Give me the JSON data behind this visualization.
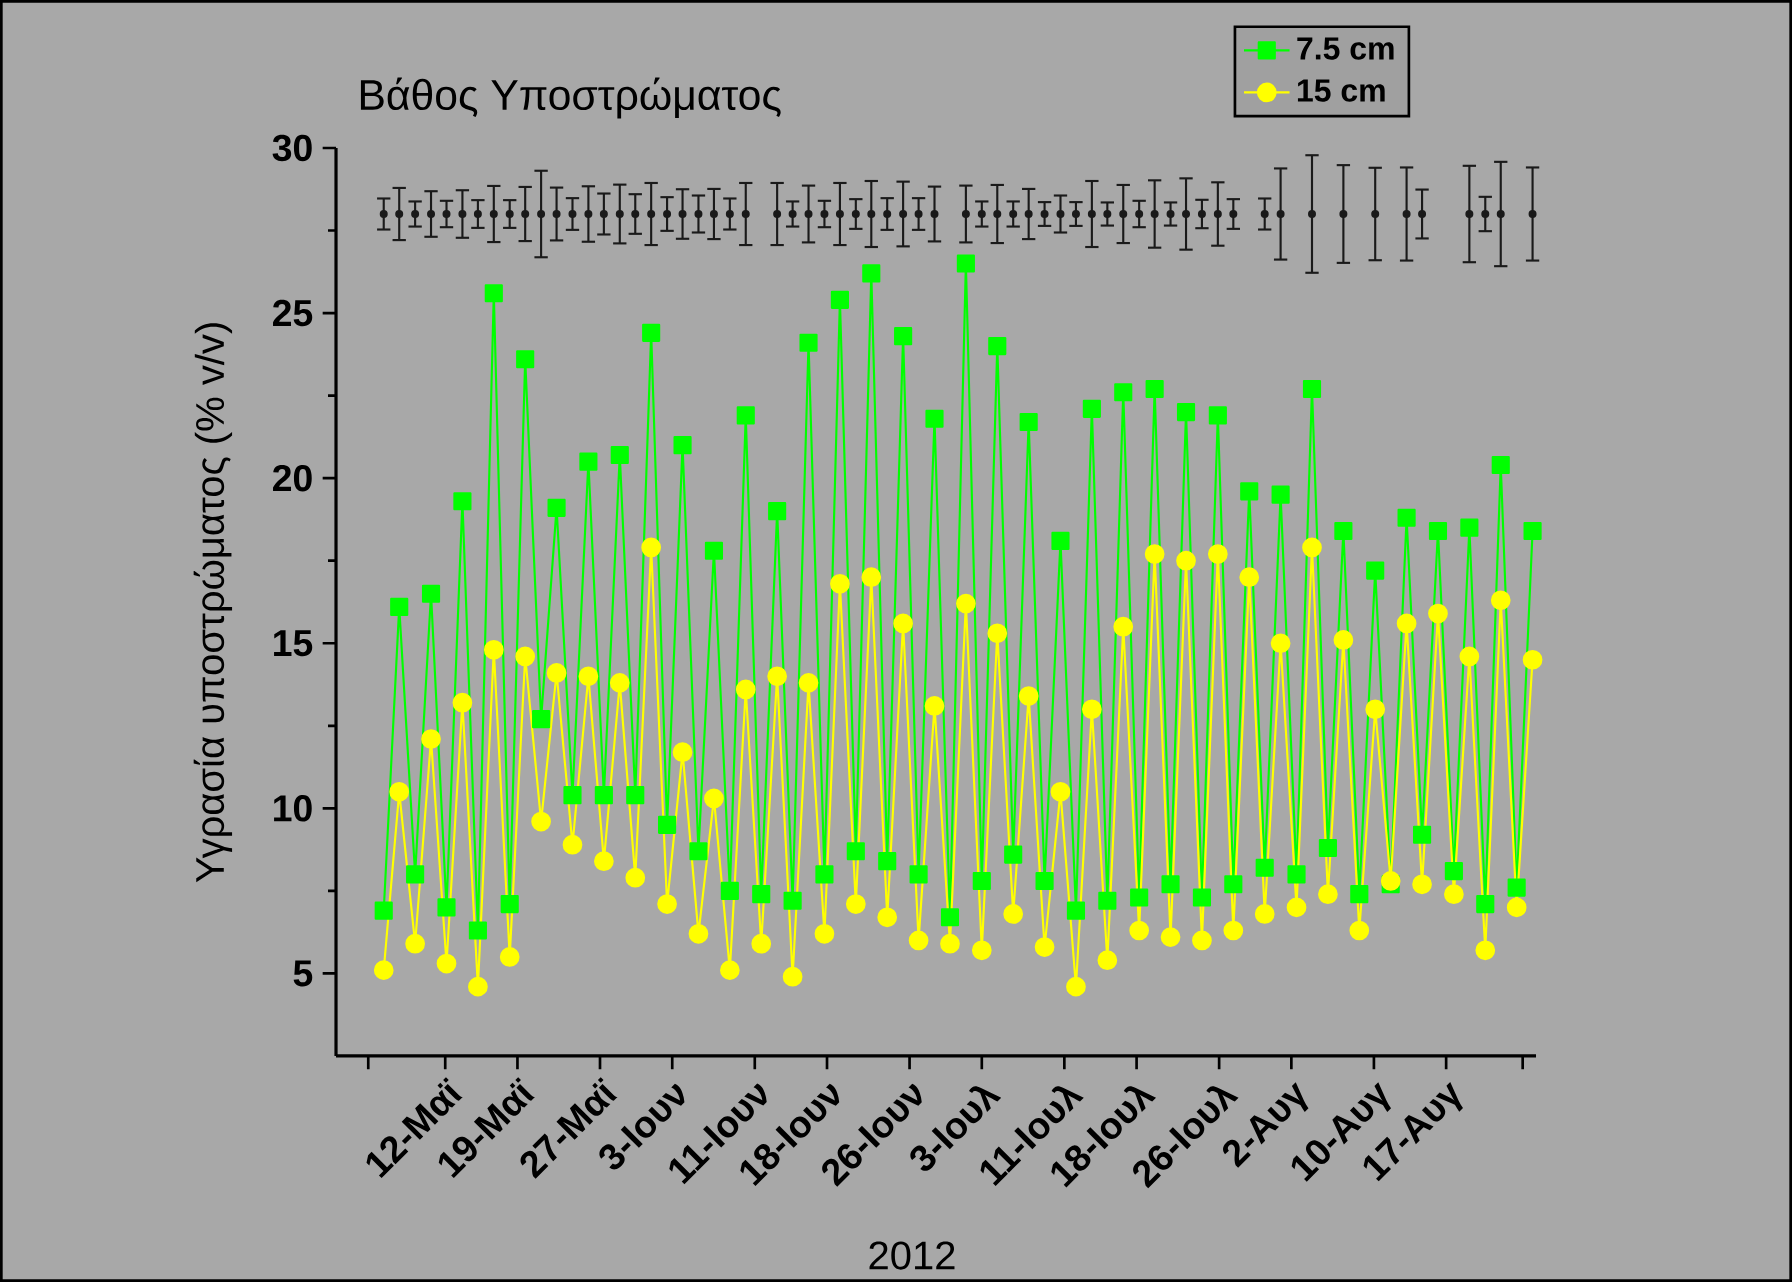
{
  "chart_data": {
    "type": "line",
    "title": "Βάθος Υποστρώματος",
    "xlabel": "2012",
    "ylabel": "Υγρασία υποστρώματος (% v/v)",
    "x": [
      "2012-05-06T01:00",
      "2012-05-07T13:00",
      "2012-05-09T02:00",
      "2012-05-10T15:00",
      "2012-05-12T03:00",
      "2012-05-13T16:00",
      "2012-05-15T04:00",
      "2012-05-16T17:00",
      "2012-05-18T06:00",
      "2012-05-19T18:00",
      "2012-05-21T07:00",
      "2012-05-22T19:00",
      "2012-05-24T08:00",
      "2012-05-25T21:00",
      "2012-05-27T09:00",
      "2012-05-28T22:00",
      "2012-05-30T10:00",
      "2012-05-31T23:00",
      "2012-06-02T12:00",
      "2012-06-04T00:00",
      "2012-06-05T13:00",
      "2012-06-07T01:00",
      "2012-06-08T14:00",
      "2012-06-10T03:00",
      "2012-06-11T15:00",
      "2012-06-13T04:00",
      "2012-06-14T16:00",
      "2012-06-16T05:00",
      "2012-06-17T18:00",
      "2012-06-19T06:00",
      "2012-06-20T19:00",
      "2012-06-22T07:00",
      "2012-06-23T20:00",
      "2012-06-25T09:00",
      "2012-06-26T21:00",
      "2012-06-28T10:00",
      "2012-06-29T22:00",
      "2012-07-01T11:00",
      "2012-07-03T00:00",
      "2012-07-04T12:00",
      "2012-07-06T01:00",
      "2012-07-07T13:00",
      "2012-07-09T02:00",
      "2012-07-10T15:00",
      "2012-07-12T03:00",
      "2012-07-13T16:00",
      "2012-07-15T04:00",
      "2012-07-16T17:00",
      "2012-07-18T06:00",
      "2012-07-19T18:00",
      "2012-07-21T07:00",
      "2012-07-22T19:00",
      "2012-07-24T08:00",
      "2012-07-25T21:00",
      "2012-07-27T09:00",
      "2012-07-28T22:00",
      "2012-07-30T10:00",
      "2012-07-31T23:00",
      "2012-08-02T12:00",
      "2012-08-04T00:00",
      "2012-08-05T13:00",
      "2012-08-07T01:00",
      "2012-08-08T14:00",
      "2012-08-10T03:00",
      "2012-08-11T15:00",
      "2012-08-13T04:00",
      "2012-08-14T16:00",
      "2012-08-16T05:00",
      "2012-08-17T18:00",
      "2012-08-19T06:00",
      "2012-08-20T19:00",
      "2012-08-22T07:00",
      "2012-08-23T20:00",
      "2012-08-25T09:00"
    ],
    "series": [
      {
        "name": "7.5 cm",
        "color": "#00ff00",
        "marker": "square",
        "values": [
          6.9,
          16.1,
          8.0,
          16.5,
          7.0,
          19.3,
          6.3,
          25.6,
          7.1,
          23.6,
          12.7,
          19.1,
          10.4,
          20.5,
          10.4,
          20.7,
          10.4,
          24.4,
          9.5,
          21.0,
          8.7,
          17.8,
          7.5,
          21.9,
          7.4,
          19.0,
          7.2,
          24.1,
          8.0,
          25.4,
          8.7,
          26.2,
          8.4,
          24.3,
          8.0,
          21.8,
          6.7,
          26.5,
          7.8,
          24.0,
          8.6,
          21.7,
          7.8,
          18.1,
          6.9,
          22.1,
          7.2,
          22.6,
          7.3,
          22.7,
          7.7,
          22.0,
          7.3,
          21.9,
          7.7,
          19.6,
          8.2,
          19.5,
          8.0,
          22.7,
          8.8,
          18.4,
          7.4,
          17.2,
          7.7,
          18.8,
          9.2,
          18.4,
          8.1,
          18.5,
          7.1,
          20.4,
          7.6,
          18.4
        ]
      },
      {
        "name": "15 cm",
        "color": "#ffff00",
        "marker": "circle",
        "values": [
          5.1,
          10.5,
          5.9,
          12.1,
          5.3,
          13.2,
          4.6,
          14.8,
          5.5,
          14.6,
          9.6,
          14.1,
          8.9,
          14.0,
          8.4,
          13.8,
          7.9,
          17.9,
          7.1,
          11.7,
          6.2,
          10.3,
          5.1,
          13.6,
          5.9,
          14.0,
          4.9,
          13.8,
          6.2,
          16.8,
          7.1,
          17.0,
          6.7,
          15.6,
          6.0,
          13.1,
          5.9,
          16.2,
          5.7,
          15.3,
          6.8,
          13.4,
          5.8,
          10.5,
          4.6,
          13.0,
          5.4,
          15.5,
          6.3,
          17.7,
          6.1,
          17.5,
          6.0,
          17.7,
          6.3,
          17.0,
          6.8,
          15.0,
          7.0,
          17.9,
          7.4,
          15.1,
          6.3,
          13.0,
          7.8,
          15.6,
          7.7,
          15.9,
          7.4,
          14.6,
          5.7,
          16.3,
          7.0,
          14.5
        ]
      },
      {
        "type": "scatter",
        "color": "#1a1a1a",
        "marker": "circle",
        "values": [
          28,
          28,
          28,
          28,
          28,
          28,
          28,
          28,
          28,
          28,
          28,
          28,
          28,
          28,
          28,
          28,
          28,
          28,
          28,
          28,
          28,
          28,
          28,
          28,
          null,
          28,
          28,
          28,
          28,
          28,
          28,
          28,
          28,
          28,
          28,
          28,
          null,
          28,
          28,
          28,
          28,
          28,
          28,
          28,
          28,
          28,
          28,
          28,
          28,
          28,
          28,
          28,
          28,
          28,
          28,
          null,
          28,
          28,
          null,
          28,
          null,
          28,
          null,
          28,
          null,
          28,
          28,
          null,
          null,
          28,
          28,
          28,
          null,
          28
        ],
        "errors": [
          0.47,
          0.79,
          0.38,
          0.69,
          0.4,
          0.72,
          0.42,
          0.85,
          0.42,
          0.82,
          1.31,
          0.8,
          0.48,
          0.84,
          0.62,
          0.89,
          0.6,
          0.94,
          0.51,
          0.75,
          0.56,
          0.76,
          0.47,
          0.94,
          null,
          0.94,
          0.38,
          0.86,
          0.4,
          0.94,
          0.45,
          1.0,
          0.48,
          0.98,
          0.48,
          0.83,
          null,
          0.86,
          0.38,
          0.88,
          0.38,
          0.76,
          0.36,
          0.56,
          0.36,
          1.0,
          0.35,
          0.88,
          0.4,
          1.02,
          0.35,
          1.08,
          0.43,
          0.96,
          0.45,
          null,
          0.47,
          1.38,
          null,
          1.78,
          null,
          1.48,
          null,
          1.4,
          null,
          1.41,
          0.74,
          null,
          null,
          1.46,
          0.52,
          1.58,
          null,
          1.41
        ]
      }
    ],
    "xlim": [
      "2012-05-01T10:00",
      "2012-08-25T17:00"
    ],
    "xticks": [
      {
        "value": "2012-05-04T13:00",
        "label": null
      },
      {
        "value": "2012-05-12",
        "label": "12-Μαϊ"
      },
      {
        "value": "2012-05-19",
        "label": "19-Μαϊ"
      },
      {
        "value": "2012-05-27",
        "label": "27-Μαϊ"
      },
      {
        "value": "2012-06-03",
        "label": "3-Ιουν"
      },
      {
        "value": "2012-06-11",
        "label": "11-Ιουν"
      },
      {
        "value": "2012-06-18",
        "label": "18-Ιουν"
      },
      {
        "value": "2012-06-26",
        "label": "26-Ιουν"
      },
      {
        "value": "2012-07-03",
        "label": "3-Ιουλ"
      },
      {
        "value": "2012-07-11",
        "label": "11-Ιουλ"
      },
      {
        "value": "2012-07-18",
        "label": "18-Ιουλ"
      },
      {
        "value": "2012-07-26",
        "label": "26-Ιουλ"
      },
      {
        "value": "2012-08-02",
        "label": "2-Αυγ"
      },
      {
        "value": "2012-08-10",
        "label": "10-Αυγ"
      },
      {
        "value": "2012-08-17",
        "label": "17-Αυγ"
      },
      {
        "value": "2012-08-24T10:00",
        "label": null
      }
    ],
    "ylim": [
      2.5,
      30
    ],
    "yticks": [
      5,
      10,
      15,
      20,
      25,
      30
    ],
    "line_style": "solid",
    "grid": false,
    "legend": "top right"
  }
}
